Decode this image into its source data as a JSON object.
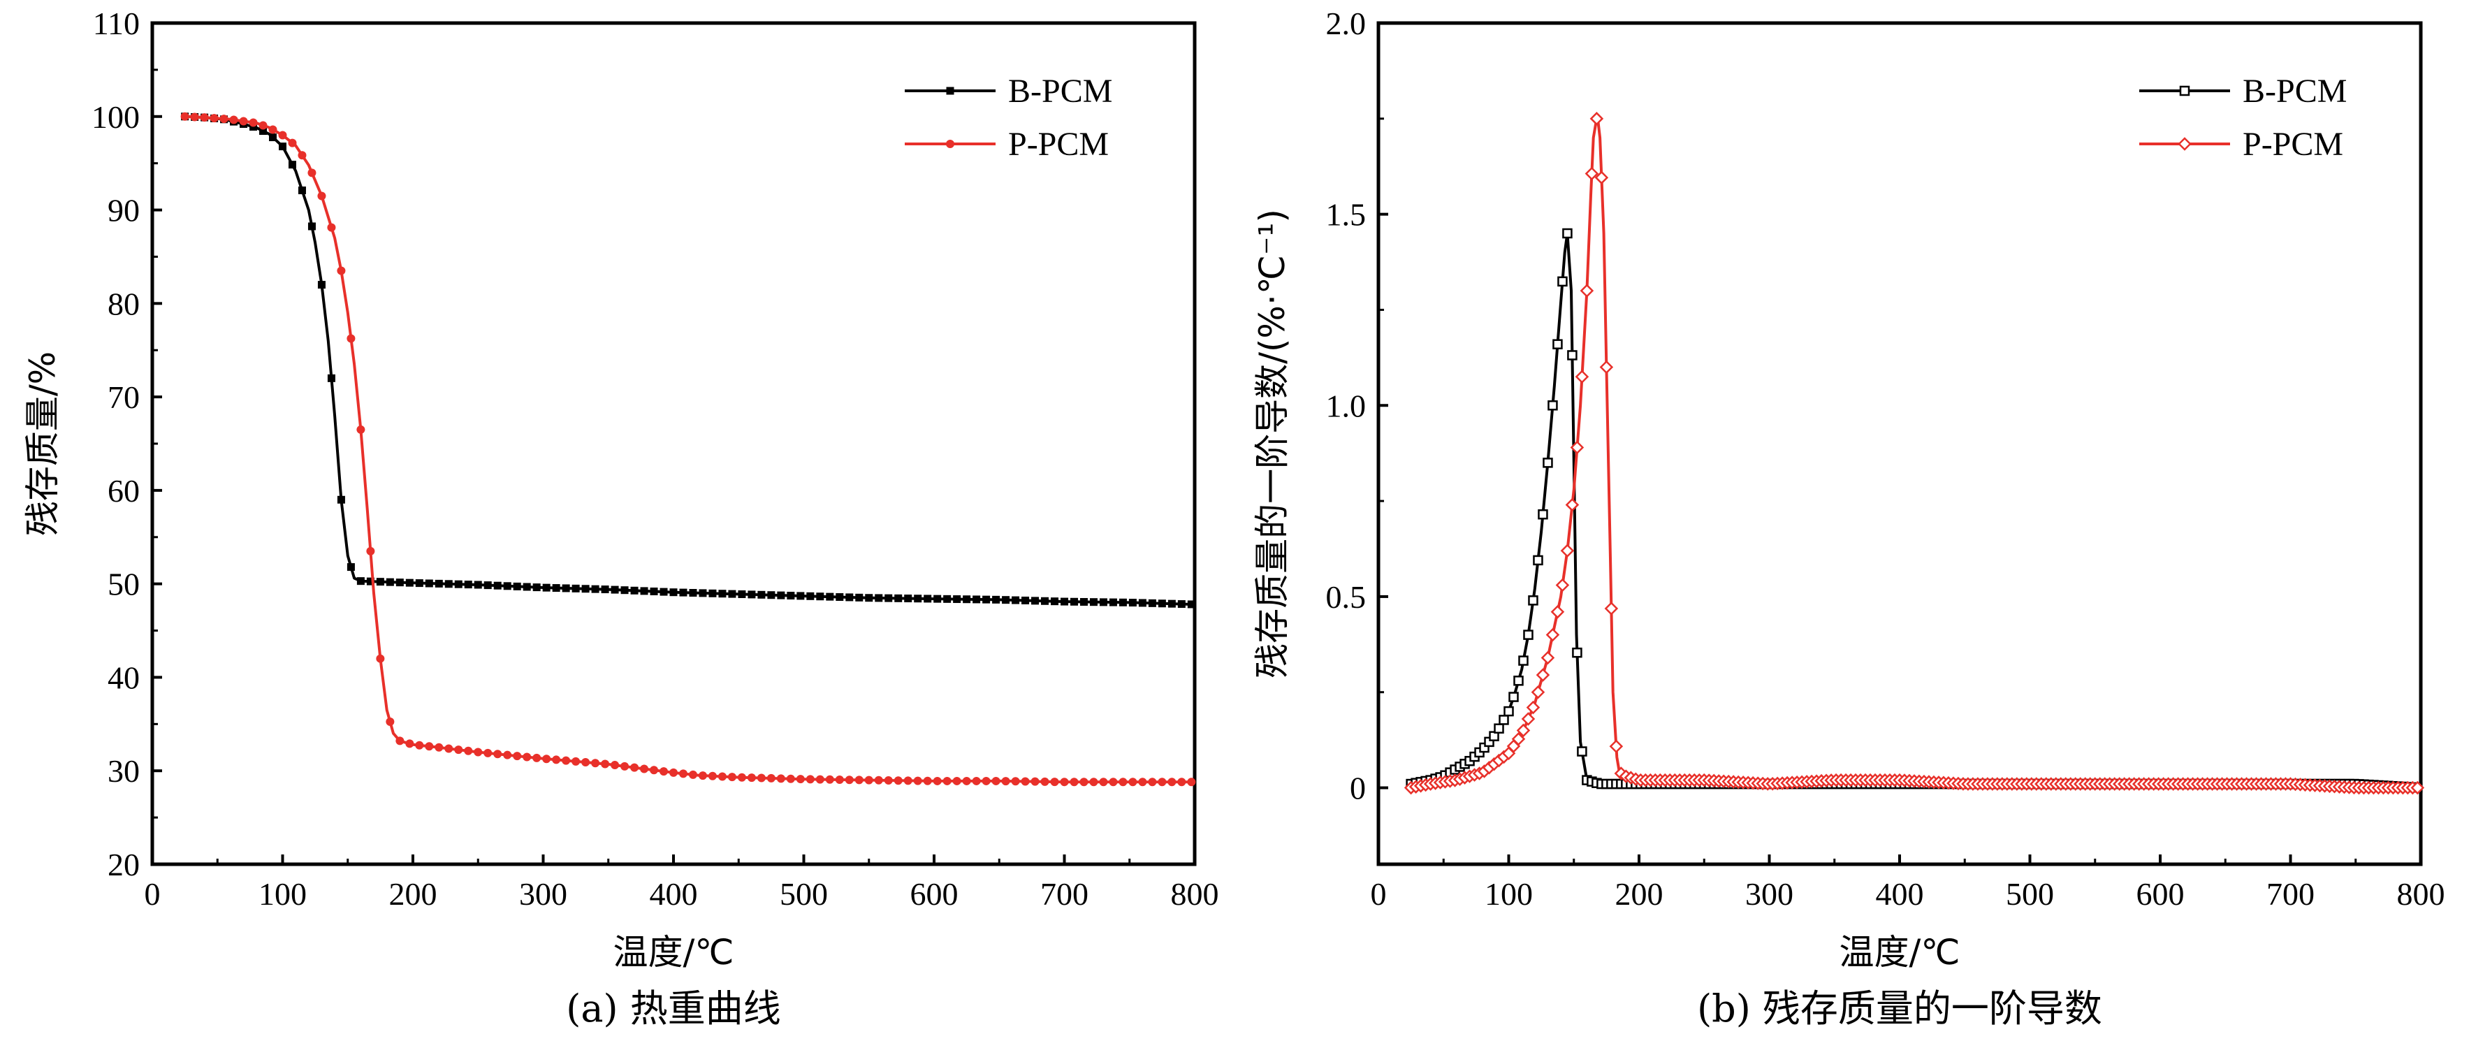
{
  "chart_data": [
    {
      "type": "line",
      "caption": "(a) 热重曲线",
      "xlabel": "温度/℃",
      "ylabel": "残存质量/%",
      "xlim": [
        0,
        800
      ],
      "ylim": [
        20,
        110
      ],
      "xticks": [
        0,
        100,
        200,
        300,
        400,
        500,
        600,
        700,
        800
      ],
      "yticks": [
        20,
        30,
        40,
        50,
        60,
        70,
        80,
        90,
        100,
        110
      ],
      "grid": false,
      "legend_position": "top-right",
      "series": [
        {
          "name": "B-PCM",
          "color": "#000000",
          "marker": "filled-square",
          "x": [
            25,
            40,
            55,
            70,
            80,
            90,
            100,
            110,
            120,
            125,
            130,
            135,
            140,
            145,
            150,
            155,
            160,
            180,
            200,
            250,
            300,
            350,
            400,
            450,
            500,
            550,
            600,
            650,
            700,
            750,
            800
          ],
          "y": [
            100,
            99.9,
            99.7,
            99.2,
            98.8,
            98.1,
            96.8,
            94.2,
            90,
            86.5,
            82,
            76,
            68,
            59,
            53,
            50.6,
            50.3,
            50.2,
            50.1,
            49.9,
            49.6,
            49.4,
            49.1,
            48.9,
            48.7,
            48.5,
            48.4,
            48.3,
            48.1,
            48,
            47.8
          ]
        },
        {
          "name": "P-PCM",
          "color": "#e8302a",
          "marker": "filled-circle",
          "x": [
            25,
            40,
            60,
            80,
            90,
            100,
            110,
            120,
            130,
            140,
            145,
            150,
            155,
            160,
            165,
            170,
            175,
            180,
            185,
            190,
            200,
            220,
            250,
            300,
            350,
            400,
            420,
            450,
            500,
            550,
            600,
            650,
            700,
            750,
            800
          ],
          "y": [
            100,
            99.9,
            99.7,
            99.3,
            98.8,
            98,
            96.9,
            94.8,
            91.5,
            87,
            83.5,
            79,
            73.5,
            66.5,
            58,
            49,
            42,
            36.5,
            34,
            33.2,
            32.8,
            32.5,
            32,
            31.3,
            30.7,
            29.8,
            29.5,
            29.3,
            29.1,
            29,
            28.9,
            28.9,
            28.8,
            28.8,
            28.8
          ]
        }
      ]
    },
    {
      "type": "line",
      "caption": "(b) 残存质量的一阶导数",
      "xlabel": "温度/℃",
      "ylabel": "残存质量的一阶导数/(%·℃⁻¹)",
      "xlim": [
        0,
        800
      ],
      "ylim": [
        -0.2,
        2.0
      ],
      "xticks": [
        0,
        100,
        200,
        300,
        400,
        500,
        600,
        700,
        800
      ],
      "yticks": [
        0,
        0.5,
        1.0,
        1.5,
        2.0
      ],
      "ytick_labels": [
        "0",
        "0.5",
        "1.0",
        "1.5",
        "2.0"
      ],
      "grid": false,
      "legend_position": "top-right",
      "series": [
        {
          "name": "B-PCM",
          "color": "#000000",
          "marker": "open-square",
          "x": [
            25,
            40,
            50,
            60,
            70,
            80,
            90,
            100,
            105,
            110,
            115,
            120,
            125,
            130,
            135,
            140,
            143,
            145,
            148,
            150,
            152,
            155,
            160,
            170,
            200,
            250,
            300,
            350,
            400,
            450,
            500,
            550,
            600,
            650,
            700,
            750,
            800
          ],
          "y": [
            0.01,
            0.02,
            0.03,
            0.05,
            0.07,
            0.1,
            0.14,
            0.2,
            0.25,
            0.31,
            0.4,
            0.52,
            0.67,
            0.85,
            1.05,
            1.27,
            1.4,
            1.45,
            1.3,
            0.85,
            0.4,
            0.12,
            0.02,
            0.01,
            0.01,
            0.01,
            0.01,
            0.01,
            0.01,
            0.01,
            0.01,
            0.01,
            0.01,
            0.01,
            0.01,
            0.01,
            0.0
          ]
        },
        {
          "name": "P-PCM",
          "color": "#e8302a",
          "marker": "open-diamond",
          "x": [
            25,
            40,
            60,
            80,
            100,
            110,
            120,
            130,
            140,
            145,
            150,
            155,
            160,
            163,
            165,
            168,
            170,
            173,
            175,
            178,
            180,
            183,
            185,
            190,
            200,
            250,
            300,
            350,
            400,
            450,
            500,
            550,
            600,
            650,
            700,
            750,
            800
          ],
          "y": [
            0.0,
            0.01,
            0.02,
            0.04,
            0.09,
            0.14,
            0.22,
            0.34,
            0.5,
            0.62,
            0.78,
            1.0,
            1.3,
            1.55,
            1.7,
            1.76,
            1.7,
            1.45,
            1.1,
            0.6,
            0.25,
            0.08,
            0.04,
            0.03,
            0.02,
            0.02,
            0.01,
            0.02,
            0.02,
            0.01,
            0.01,
            0.01,
            0.01,
            0.01,
            0.01,
            0.0,
            0.0
          ]
        }
      ]
    }
  ]
}
